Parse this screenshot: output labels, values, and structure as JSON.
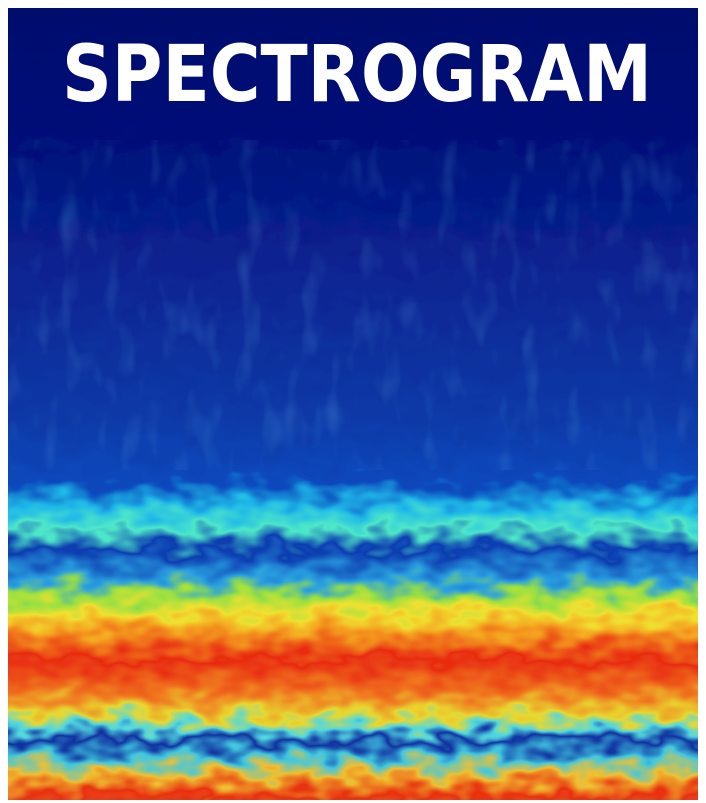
{
  "title": "SPECTROGRAM"
}
